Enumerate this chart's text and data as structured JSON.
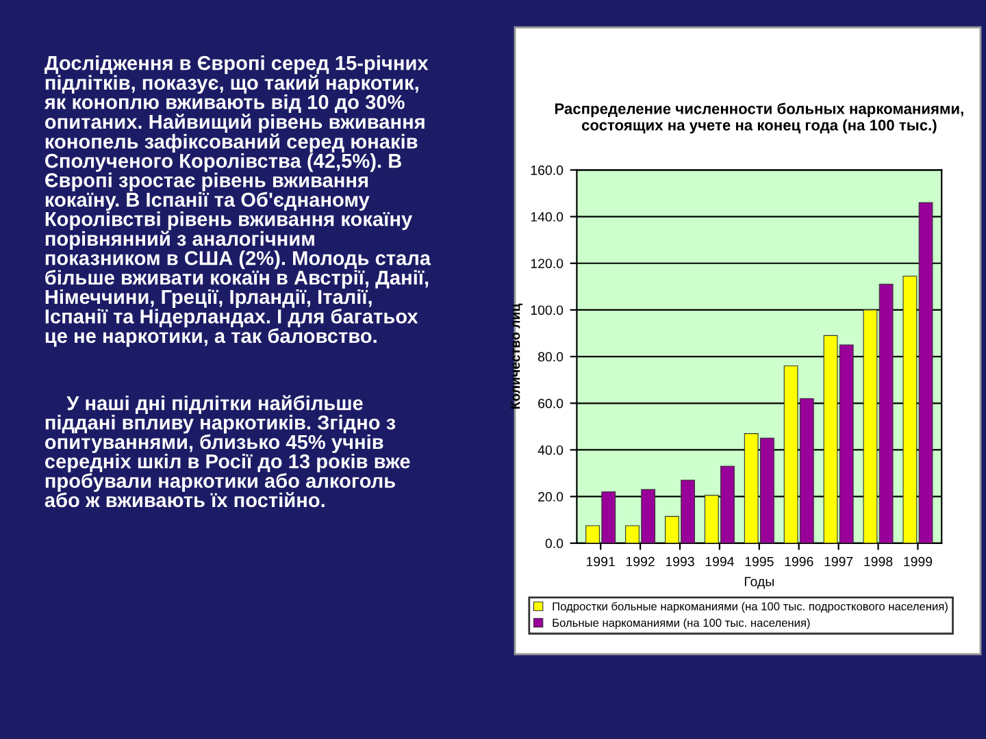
{
  "chart_data": {
    "type": "bar",
    "title": "Распределение численности больных наркоманиями, состоящих на учете на конец года (на 100 тыс.)",
    "xlabel": "Годы",
    "ylabel": "Количество лиц",
    "categories": [
      "1991",
      "1992",
      "1993",
      "1994",
      "1995",
      "1996",
      "1997",
      "1998",
      "1999"
    ],
    "series": [
      {
        "name": "Подростки больные наркоманиями (на 100 тыс. подросткового населения)",
        "color": "#ffff00",
        "values": [
          7.5,
          7.5,
          11.5,
          20.5,
          47,
          76,
          89,
          100,
          114.5
        ]
      },
      {
        "name": "Больные наркоманиями (на 100 тыс. населения)",
        "color": "#990099",
        "values": [
          22,
          23,
          27,
          33,
          45,
          62,
          85,
          111,
          146
        ]
      }
    ],
    "ylim": [
      0,
      160
    ],
    "yticks": [
      {
        "value": 0,
        "label": "0.0"
      },
      {
        "value": 20,
        "label": "20.0"
      },
      {
        "value": 40,
        "label": "40.0"
      },
      {
        "value": 60,
        "label": "60.0"
      },
      {
        "value": 80,
        "label": "80.0"
      },
      {
        "value": 100,
        "label": "100.0"
      },
      {
        "value": 120,
        "label": "120.0"
      },
      {
        "value": 140,
        "label": "140.0"
      },
      {
        "value": 160,
        "label": "160.0"
      }
    ],
    "grid": "y",
    "legend": "bottom",
    "annotations": [
      "Дослідження в Європі серед 15-річних\nпідлітків, показує, що такий наркотик,\nяк коноплю вживають від 10 до 30%\nопитаних. Найвищий рівень вживання\nконопель зафіксований серед юнаків\nСполученого Королівства (42,5%). В\nЄвропі зростає рівень вживання\nкокаїну. В Іспанії та Об'єднаному\nКоролівстві рівень вживання кокаїну\nпорівнянний з аналогічним\nпоказником в США (2%). Молодь стала\nбільше вживати кокаїн в Австрії, Данії,\nНімеччини, Греції, Ірландії, Італії,\nІспанії та Нідерландах. І для багатьох\nце не наркотики, а так баловство.",
      "    У наші дні підлітки найбільше\nпіддані впливу наркотиків. Згідно з\nопитуваннями, близько 45% учнів\nсередніх шкіл в Росії до 13 років вже\nпробували наркотики або алкоголь\nабо ж вживають їх постійно."
    ]
  }
}
